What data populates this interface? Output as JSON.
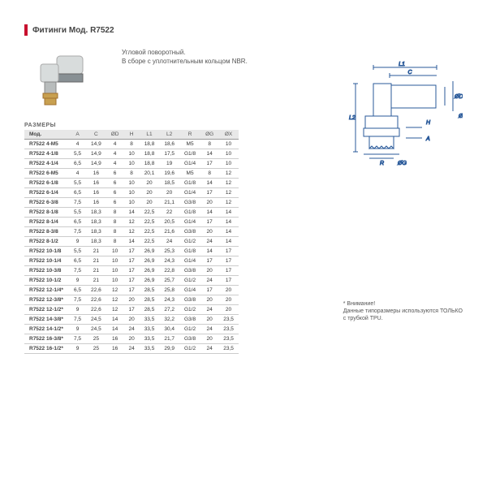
{
  "title": "Фитинги Мод. R7522",
  "description": {
    "line1": "Угловой поворотный.",
    "line2": "В сборе с уплотнительным кольцом NBR."
  },
  "sizes_label": "РАЗМЕРЫ",
  "columns": [
    "Мод.",
    "A",
    "C",
    "ØD",
    "H",
    "L1",
    "L2",
    "R",
    "ØG",
    "ØX"
  ],
  "rows": [
    [
      "R7522 4-M5",
      "4",
      "14,9",
      "4",
      "8",
      "18,8",
      "18,6",
      "M5",
      "8",
      "10"
    ],
    [
      "R7522 4-1/8",
      "5,5",
      "14,9",
      "4",
      "10",
      "18,8",
      "17,5",
      "G1/8",
      "14",
      "10"
    ],
    [
      "R7522 4-1/4",
      "6,5",
      "14,9",
      "4",
      "10",
      "18,8",
      "19",
      "G1/4",
      "17",
      "10"
    ],
    [
      "R7522 6-M5",
      "4",
      "16",
      "6",
      "8",
      "20,1",
      "19,6",
      "M5",
      "8",
      "12"
    ],
    [
      "R7522 6-1/8",
      "5,5",
      "16",
      "6",
      "10",
      "20",
      "18,5",
      "G1/8",
      "14",
      "12"
    ],
    [
      "R7522 6-1/4",
      "6,5",
      "16",
      "6",
      "10",
      "20",
      "20",
      "G1/4",
      "17",
      "12"
    ],
    [
      "R7522 6-3/8",
      "7,5",
      "16",
      "6",
      "10",
      "20",
      "21,1",
      "G3/8",
      "20",
      "12"
    ],
    [
      "R7522 8-1/8",
      "5,5",
      "18,3",
      "8",
      "14",
      "22,5",
      "22",
      "G1/8",
      "14",
      "14"
    ],
    [
      "R7522 8-1/4",
      "6,5",
      "18,3",
      "8",
      "12",
      "22,5",
      "20,5",
      "G1/4",
      "17",
      "14"
    ],
    [
      "R7522 8-3/8",
      "7,5",
      "18,3",
      "8",
      "12",
      "22,5",
      "21,6",
      "G3/8",
      "20",
      "14"
    ],
    [
      "R7522 8-1/2",
      "9",
      "18,3",
      "8",
      "14",
      "22,5",
      "24",
      "G1/2",
      "24",
      "14"
    ],
    [
      "R7522 10-1/8",
      "5,5",
      "21",
      "10",
      "17",
      "26,9",
      "25,3",
      "G1/8",
      "14",
      "17"
    ],
    [
      "R7522 10-1/4",
      "6,5",
      "21",
      "10",
      "17",
      "26,9",
      "24,3",
      "G1/4",
      "17",
      "17"
    ],
    [
      "R7522 10-3/8",
      "7,5",
      "21",
      "10",
      "17",
      "26,9",
      "22,8",
      "G3/8",
      "20",
      "17"
    ],
    [
      "R7522 10-1/2",
      "9",
      "21",
      "10",
      "17",
      "26,9",
      "25,7",
      "G1/2",
      "24",
      "17"
    ],
    [
      "R7522 12-1/4*",
      "6,5",
      "22,6",
      "12",
      "17",
      "28,5",
      "25,8",
      "G1/4",
      "17",
      "20"
    ],
    [
      "R7522 12-3/8*",
      "7,5",
      "22,6",
      "12",
      "20",
      "28,5",
      "24,3",
      "G3/8",
      "20",
      "20"
    ],
    [
      "R7522 12-1/2*",
      "9",
      "22,6",
      "12",
      "17",
      "28,5",
      "27,2",
      "G1/2",
      "24",
      "20"
    ],
    [
      "R7522 14-3/8*",
      "7,5",
      "24,5",
      "14",
      "20",
      "33,5",
      "32,2",
      "G3/8",
      "20",
      "23,5"
    ],
    [
      "R7522 14-1/2*",
      "9",
      "24,5",
      "14",
      "24",
      "33,5",
      "30,4",
      "G1/2",
      "24",
      "23,5"
    ],
    [
      "R7522 16-3/8*",
      "7,5",
      "25",
      "16",
      "20",
      "33,5",
      "21,7",
      "G3/8",
      "20",
      "23,5"
    ],
    [
      "R7522 16-1/2*",
      "9",
      "25",
      "16",
      "24",
      "33,5",
      "29,9",
      "G1/2",
      "24",
      "23,5"
    ]
  ],
  "footnote": {
    "line1": "* Внимание!",
    "line2": "Данные типоразмеры используются ТОЛЬКО",
    "line3": "с трубкой TPU."
  },
  "diagram_labels": [
    "L1",
    "C",
    "ØD",
    "ØX",
    "L2",
    "H",
    "A",
    "R",
    "ØG"
  ],
  "colors": {
    "accent": "#c8102e",
    "text": "#444",
    "muted": "#666",
    "border": "#ccc",
    "header_bg": "#e8e8e8"
  }
}
